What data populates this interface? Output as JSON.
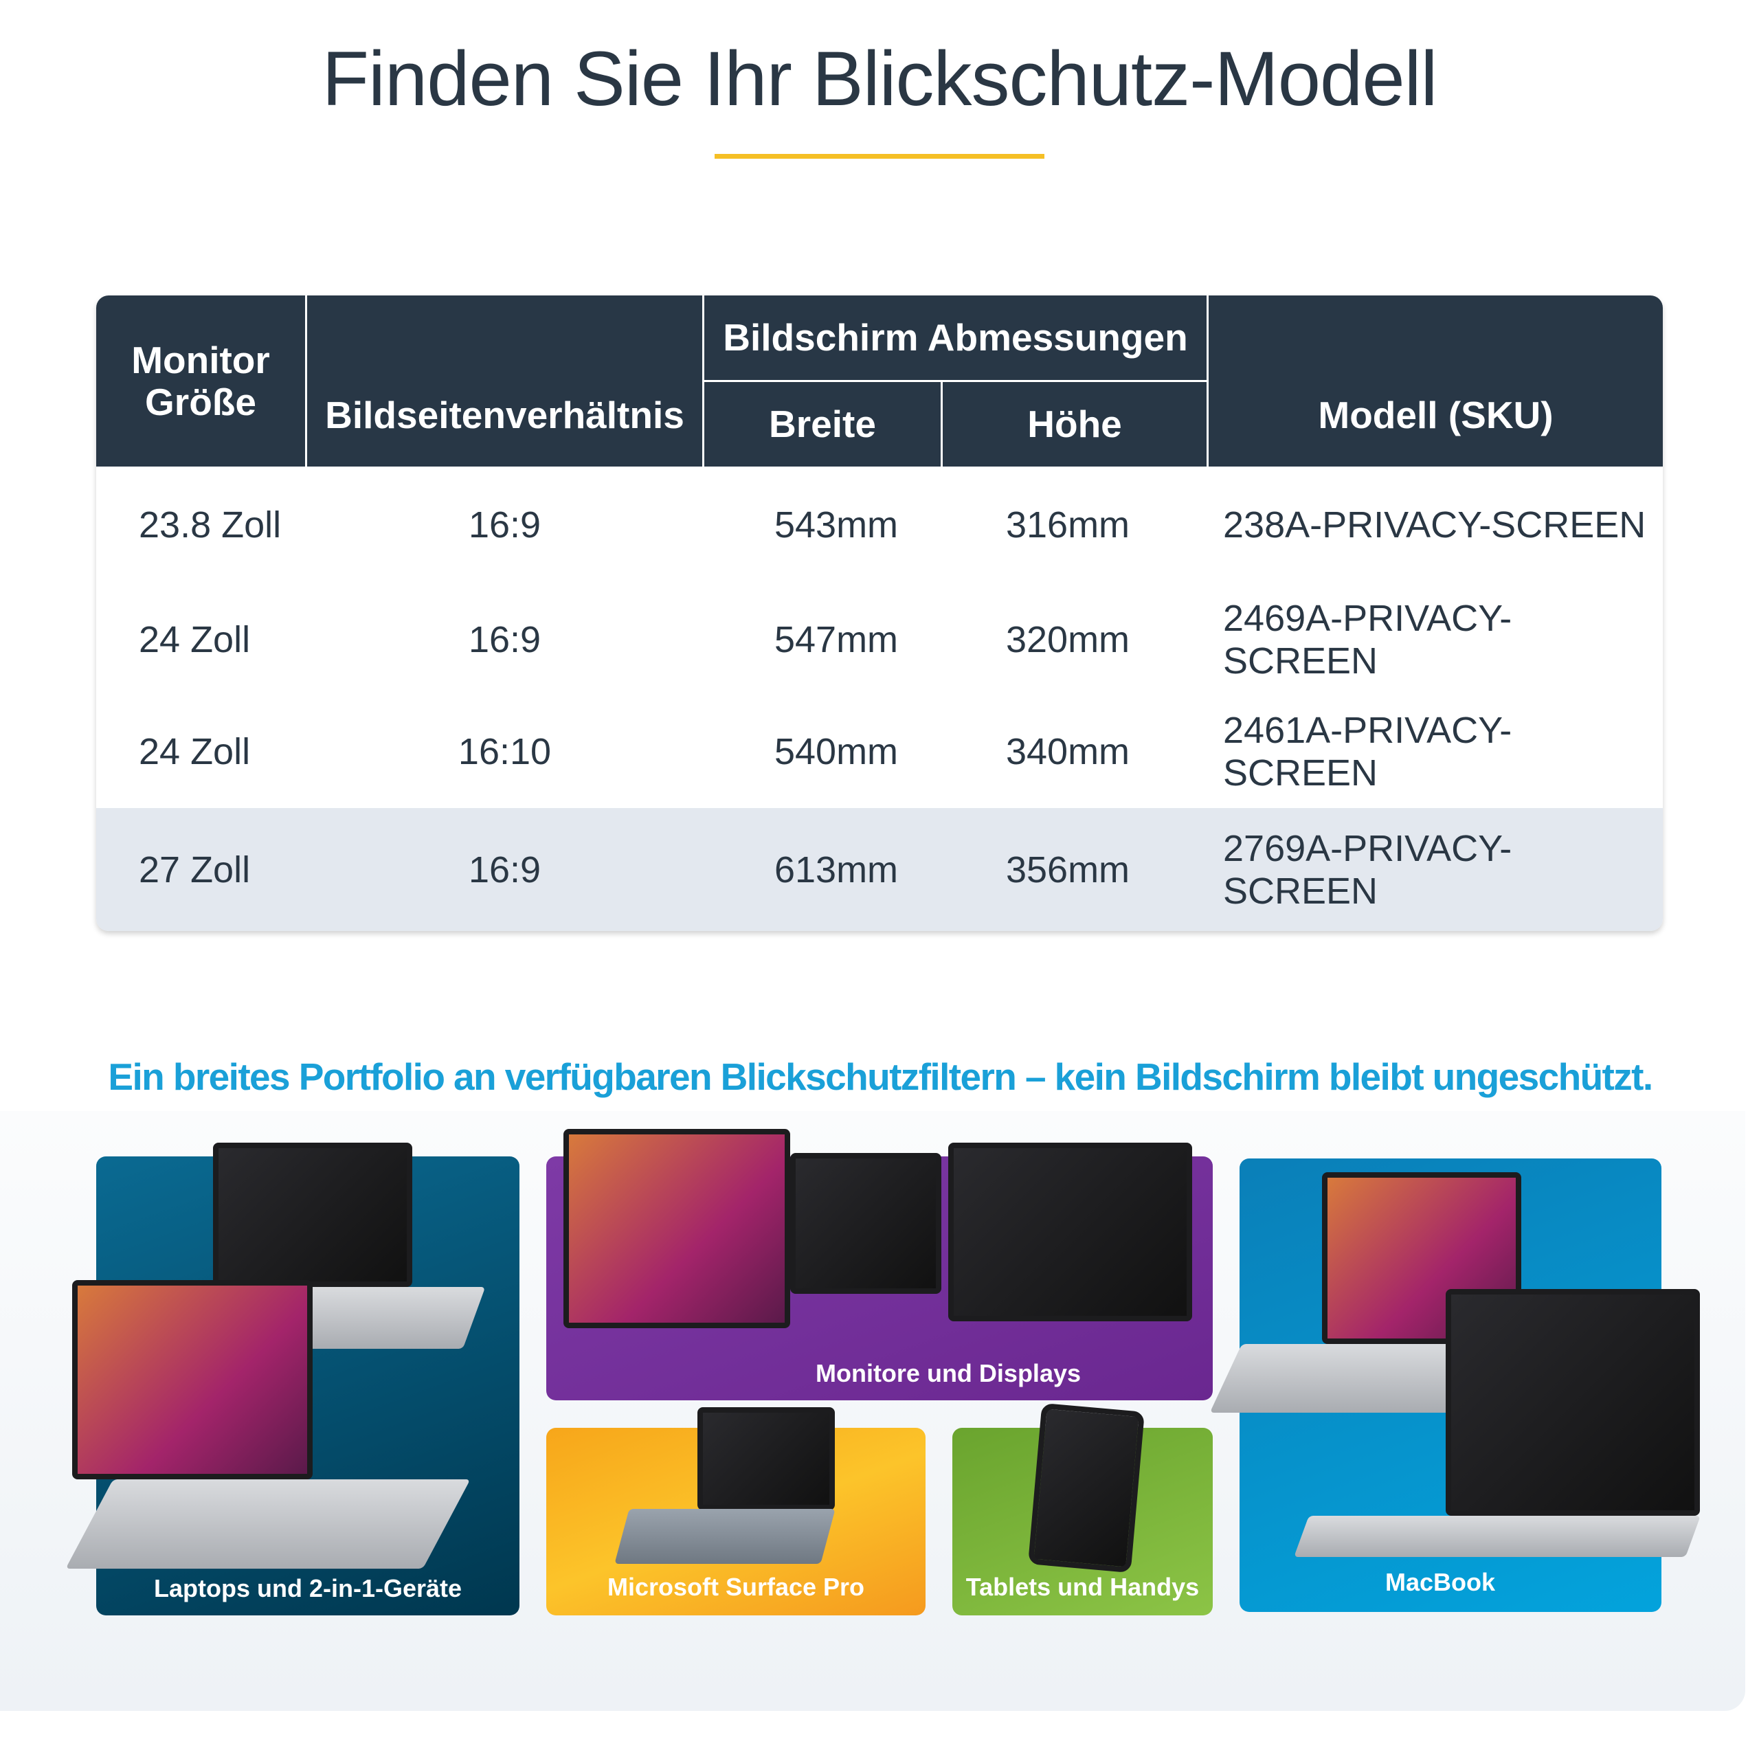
{
  "title": "Finden Sie Ihr Blickschutz-Modell",
  "colors": {
    "accent": "#f5bf25",
    "header_bg": "#283746",
    "subtitle": "#1aa0d8",
    "highlight_row": "#e3e8ef"
  },
  "table": {
    "headers": {
      "size": "Monitor Größe",
      "aspect": "Bildseitenverhältnis",
      "dimensions": "Bildschirm Abmessungen",
      "width": "Breite",
      "height": "Höhe",
      "sku": "Modell (SKU)"
    },
    "rows": [
      {
        "size": "23.8 Zoll",
        "aspect": "16:9",
        "width": "543mm",
        "height": "316mm",
        "sku": "238A-PRIVACY-SCREEN"
      },
      {
        "size": "24 Zoll",
        "aspect": "16:9",
        "width": "547mm",
        "height": "320mm",
        "sku": "2469A-PRIVACY-SCREEN"
      },
      {
        "size": "24 Zoll",
        "aspect": "16:10",
        "width": "540mm",
        "height": "340mm",
        "sku": "2461A-PRIVACY-SCREEN"
      },
      {
        "size": "27 Zoll",
        "aspect": "16:9",
        "width": "613mm",
        "height": "356mm",
        "sku": "2769A-PRIVACY-SCREEN"
      }
    ]
  },
  "subtitle": "Ein breites Portfolio an verfügbaren Blickschutzfiltern – kein Bildschirm bleibt ungeschützt.",
  "categories": [
    {
      "label": "Laptops und 2-in-1-Geräte"
    },
    {
      "label": "Monitore und Displays"
    },
    {
      "label": "Microsoft Surface Pro"
    },
    {
      "label": "Tablets und Handys"
    },
    {
      "label": "MacBook"
    }
  ]
}
